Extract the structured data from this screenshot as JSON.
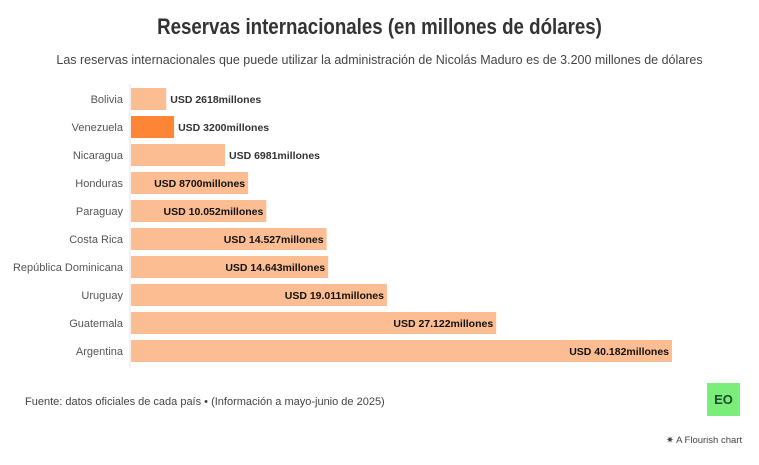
{
  "chart_data": {
    "type": "bar",
    "orientation": "horizontal",
    "title": "Reservas internacionales (en millones de dólares)",
    "subtitle": "Las reservas internacionales que puede utilizar la administración de Nicolás Maduro es de 3.200 millones de dólares",
    "categories": [
      "Bolivia",
      "Venezuela",
      "Nicaragua",
      "Honduras",
      "Paraguay",
      "Costa Rica",
      "República Dominicana",
      "Uruguay",
      "Guatemala",
      "Argentina"
    ],
    "values": [
      2618,
      3200,
      6981,
      8700,
      10052,
      14527,
      14643,
      19011,
      27122,
      40182
    ],
    "data_labels": [
      "USD 2618millones",
      "USD 3200millones",
      "USD 6981millones",
      "USD 8700millones",
      "USD 10.052millones",
      "USD 14.527millones",
      "USD 14.643millones",
      "USD 19.011millones",
      "USD 27.122millones",
      "USD 40.182millones"
    ],
    "colors": {
      "default": "#fbbd91",
      "highlight": "#fd8535"
    },
    "highlight": "Venezuela",
    "xlim": [
      0,
      40182
    ]
  },
  "footer": {
    "source": "Fuente: datos oficiales de cada país • (Información a mayo-junio de 2025)",
    "logo": "EO",
    "credit": "A Flourish chart"
  }
}
